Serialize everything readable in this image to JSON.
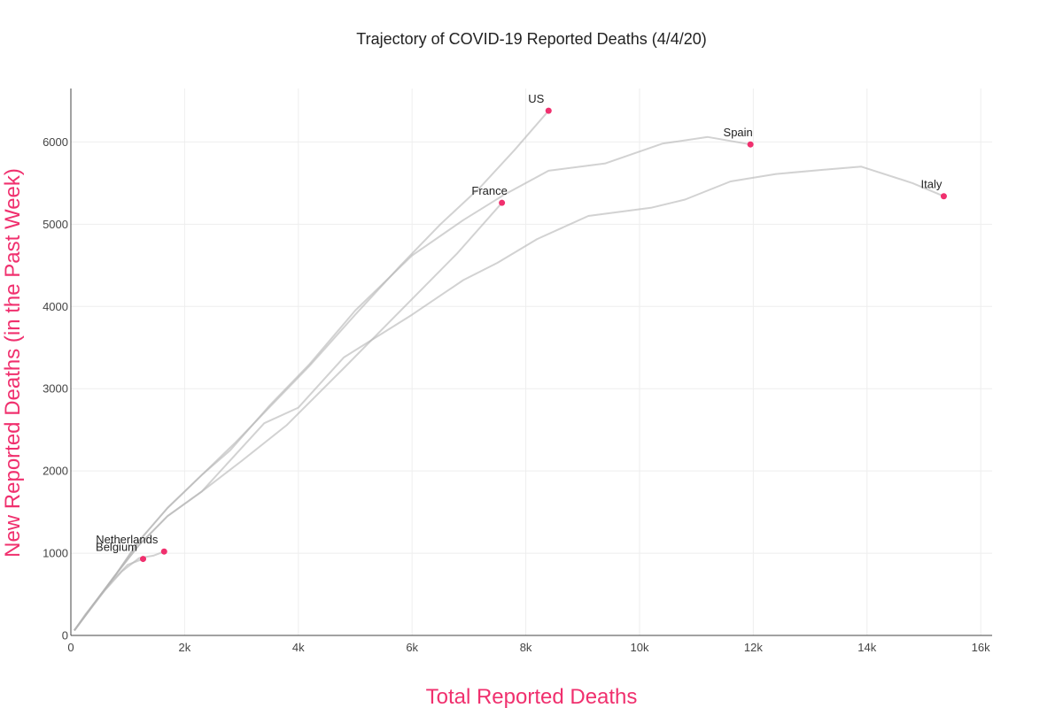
{
  "chart_data": {
    "type": "line",
    "title": "Trajectory of COVID-19 Reported Deaths (4/4/20)",
    "xlabel": "Total Reported Deaths",
    "ylabel": "New Reported Deaths (in the Past Week)",
    "xlim": [
      0,
      16200
    ],
    "ylim": [
      0,
      6650
    ],
    "x_ticks": [
      0,
      2000,
      4000,
      6000,
      8000,
      10000,
      12000,
      14000,
      16000
    ],
    "x_tick_labels": [
      "0",
      "2k",
      "4k",
      "6k",
      "8k",
      "10k",
      "12k",
      "14k",
      "16k"
    ],
    "y_ticks": [
      0,
      1000,
      2000,
      3000,
      4000,
      5000,
      6000
    ],
    "y_tick_labels": [
      "0",
      "1000",
      "2000",
      "3000",
      "4000",
      "5000",
      "6000"
    ],
    "grid": true,
    "colors": {
      "line": "#b4b4b4",
      "marker": "#f0306e",
      "axis_label": "#f0306e",
      "axis": "#444444",
      "grid": "#eeeeee"
    },
    "series": [
      {
        "name": "US",
        "x": [
          60,
          400,
          800,
          1200,
          1700,
          2300,
          2900,
          3600,
          4200,
          5000,
          5800,
          6500,
          7200,
          7800,
          8400
        ],
        "y": [
          60,
          380,
          750,
          1150,
          1550,
          1950,
          2350,
          2850,
          3280,
          3900,
          4500,
          5000,
          5450,
          5900,
          6380
        ]
      },
      {
        "name": "Spain",
        "x": [
          60,
          400,
          800,
          1200,
          1700,
          2300,
          2800,
          3500,
          4200,
          5000,
          6000,
          6900,
          7600,
          8400,
          9400,
          10400,
          11200,
          11950
        ],
        "y": [
          60,
          380,
          750,
          1150,
          1550,
          1950,
          2250,
          2800,
          3300,
          3950,
          4620,
          5050,
          5350,
          5650,
          5740,
          5980,
          6060,
          5970
        ]
      },
      {
        "name": "France",
        "x": [
          60,
          400,
          800,
          1200,
          1700,
          2300,
          3000,
          3800,
          4800,
          5800,
          6800,
          7580
        ],
        "y": [
          60,
          380,
          750,
          1100,
          1450,
          1750,
          2120,
          2560,
          3250,
          3950,
          4650,
          5260
        ]
      },
      {
        "name": "Italy",
        "x": [
          60,
          400,
          800,
          1200,
          1700,
          2300,
          3400,
          4000,
          4800,
          6000,
          6900,
          7500,
          8200,
          9100,
          10200,
          10800,
          11600,
          12400,
          13200,
          13900,
          14800,
          15350
        ],
        "y": [
          60,
          380,
          750,
          1100,
          1450,
          1750,
          2580,
          2770,
          3380,
          3900,
          4320,
          4530,
          4820,
          5100,
          5200,
          5300,
          5520,
          5610,
          5660,
          5700,
          5500,
          5340
        ]
      },
      {
        "name": "Netherlands",
        "x": [
          60,
          300,
          600,
          900,
          1200,
          1450,
          1640
        ],
        "y": [
          60,
          280,
          550,
          780,
          940,
          970,
          1020
        ]
      },
      {
        "name": "Belgium",
        "x": [
          60,
          250,
          500,
          750,
          1000,
          1270
        ],
        "y": [
          60,
          250,
          470,
          680,
          860,
          930
        ]
      }
    ],
    "end_labels": [
      {
        "name": "US",
        "x": 8400,
        "y": 6380,
        "label": "US"
      },
      {
        "name": "Spain",
        "x": 11950,
        "y": 5970,
        "label": "Spain"
      },
      {
        "name": "France",
        "x": 7580,
        "y": 5260,
        "label": "France"
      },
      {
        "name": "Italy",
        "x": 15350,
        "y": 5340,
        "label": "Italy"
      },
      {
        "name": "Netherlands",
        "x": 1640,
        "y": 1020,
        "label": "Netherlands"
      },
      {
        "name": "Belgium",
        "x": 1270,
        "y": 930,
        "label": "Belgium"
      }
    ]
  }
}
